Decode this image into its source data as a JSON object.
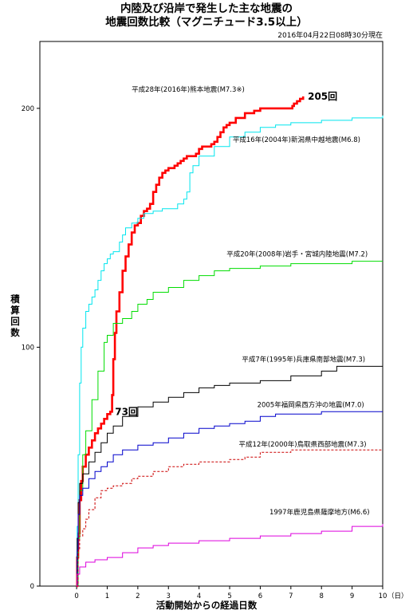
{
  "header": {
    "title_line1": "内陸及び沿岸で発生した主な地震の",
    "title_line2": "地震回数比較（マグニチュード3.5以上）",
    "as_of": "2016年04月22日08時30分現在"
  },
  "chart_data": {
    "type": "line",
    "xlabel": "活動開始からの経過日数",
    "ylabel": "積算回数",
    "x_unit": "（日）",
    "xlim": [
      -1.2,
      10
    ],
    "ylim": [
      0,
      228
    ],
    "x_ticks": [
      0,
      1,
      2,
      3,
      4,
      5,
      6,
      7,
      8,
      9,
      10
    ],
    "y_ticks": [
      0,
      100,
      200
    ],
    "grid": false,
    "annotations": [
      {
        "text": "205回",
        "x": 7.45,
        "y": 205
      },
      {
        "text": "73回",
        "x": 1.15,
        "y": 73
      }
    ],
    "series": [
      {
        "name": "平成28年(2016年)熊本地震(M7.3※)",
        "color": "#ff0000",
        "style": "solid",
        "width": 2.6,
        "label_x": 1.8,
        "label_y": 207,
        "x": [
          0,
          0.02,
          0.05,
          0.1,
          0.15,
          0.2,
          0.3,
          0.4,
          0.5,
          0.6,
          0.7,
          0.8,
          0.9,
          1.0,
          1.1,
          1.15,
          1.16,
          1.2,
          1.25,
          1.3,
          1.4,
          1.5,
          1.6,
          1.7,
          1.8,
          1.9,
          2.0,
          2.1,
          2.2,
          2.3,
          2.4,
          2.45,
          2.5,
          2.6,
          2.7,
          2.8,
          2.9,
          3.0,
          3.1,
          3.2,
          3.3,
          3.4,
          3.5,
          3.6,
          3.7,
          3.8,
          3.9,
          4.0,
          4.1,
          4.2,
          4.3,
          4.4,
          4.5,
          4.6,
          4.7,
          4.8,
          4.9,
          5.0,
          5.2,
          5.5,
          5.8,
          6.0,
          6.5,
          7.0,
          7.05,
          7.1,
          7.2,
          7.3,
          7.4
        ],
        "y": [
          0,
          12,
          22,
          36,
          44,
          50,
          55,
          58,
          61,
          64,
          66,
          68,
          70,
          72,
          73,
          73,
          80,
          95,
          106,
          115,
          123,
          132,
          138,
          143,
          148,
          151,
          152,
          155,
          157,
          158,
          160,
          160,
          165,
          168,
          171,
          173,
          174,
          175,
          175,
          176,
          177,
          178,
          179,
          180,
          180,
          180,
          181,
          183,
          184,
          184,
          184,
          185,
          186,
          188,
          190,
          192,
          193,
          194,
          196,
          198,
          199,
          200,
          200,
          200,
          201,
          202,
          203,
          204,
          205
        ]
      },
      {
        "name": "平成16年(2004年)新潟県中越地震(M6.8)",
        "color": "#00e5ee",
        "style": "solid",
        "width": 1,
        "label_x": 5.1,
        "label_y": 186,
        "x": [
          0,
          0.02,
          0.05,
          0.1,
          0.15,
          0.2,
          0.3,
          0.4,
          0.5,
          0.6,
          0.7,
          0.8,
          0.9,
          1.0,
          1.1,
          1.2,
          1.4,
          1.5,
          1.6,
          1.8,
          2.0,
          2.2,
          2.5,
          2.8,
          3.0,
          3.3,
          3.5,
          3.6,
          3.7,
          3.8,
          4.0,
          4.5,
          5.0,
          5.5,
          6.0,
          6.5,
          7.0,
          8.0,
          9.0,
          10.0
        ],
        "y": [
          0,
          25,
          55,
          85,
          100,
          108,
          115,
          118,
          121,
          124,
          128,
          132,
          135,
          137,
          139,
          140,
          144,
          147,
          150,
          152,
          154,
          156,
          157,
          158,
          158,
          160,
          162,
          165,
          173,
          176,
          180,
          184,
          188,
          190,
          192,
          193,
          194,
          195,
          196,
          197
        ]
      },
      {
        "name": "平成20年(2008年)岩手・宮城内陸地震(M7.2)",
        "color": "#00dd00",
        "style": "solid",
        "width": 1,
        "label_x": 4.9,
        "label_y": 138,
        "x": [
          0,
          0.05,
          0.1,
          0.2,
          0.3,
          0.5,
          0.7,
          0.9,
          1.0,
          1.2,
          1.5,
          1.8,
          2.0,
          2.3,
          2.5,
          3.0,
          3.5,
          4.0,
          4.5,
          5.0,
          6.0,
          7.0,
          8.0,
          9.0,
          10.0
        ],
        "y": [
          0,
          20,
          40,
          55,
          65,
          78,
          90,
          102,
          105,
          110,
          112,
          115,
          118,
          120,
          123,
          125,
          128,
          130,
          132,
          133,
          134,
          135,
          135,
          136,
          136
        ]
      },
      {
        "name": "平成7年(1995年)兵庫県南部地震(M7.3)",
        "color": "#000000",
        "style": "solid",
        "width": 1,
        "label_x": 5.4,
        "label_y": 94,
        "x": [
          0,
          0.02,
          0.05,
          0.1,
          0.2,
          0.4,
          0.6,
          0.8,
          1.0,
          1.2,
          1.5,
          2.0,
          2.5,
          3.0,
          3.5,
          4.0,
          4.5,
          5.0,
          6.0,
          7.0,
          8.0,
          8.5,
          9.0,
          10.0
        ],
        "y": [
          0,
          20,
          35,
          43,
          47,
          52,
          56,
          60,
          64,
          67,
          71,
          75,
          77,
          79,
          81,
          83,
          84,
          85,
          86,
          88,
          90,
          92,
          92,
          93
        ]
      },
      {
        "name": "2005年福岡県西方沖の地震(M7.0)",
        "color": "#0000cc",
        "style": "solid",
        "width": 1,
        "label_x": 5.9,
        "label_y": 75,
        "x": [
          0,
          0.02,
          0.05,
          0.1,
          0.2,
          0.4,
          0.6,
          0.8,
          1.0,
          1.2,
          1.5,
          2.0,
          2.5,
          3.0,
          3.5,
          4.0,
          4.5,
          5.0,
          5.5,
          6.0,
          6.5,
          7.0,
          8.0,
          10.0
        ],
        "y": [
          0,
          15,
          30,
          38,
          41,
          45,
          48,
          50,
          52,
          55,
          57,
          59,
          60,
          62,
          64,
          66,
          67,
          68,
          69,
          71,
          72,
          72,
          73,
          73
        ]
      },
      {
        "name": "平成12年(2000年)鳥取県西部地震(M7.3)",
        "color": "#cc0000",
        "style": "dashed",
        "width": 1,
        "label_x": 5.3,
        "label_y": 58.5,
        "x": [
          0,
          0.05,
          0.1,
          0.2,
          0.3,
          0.4,
          0.6,
          0.8,
          1.0,
          1.2,
          1.5,
          1.8,
          2.0,
          2.5,
          3.0,
          3.5,
          4.0,
          5.0,
          5.5,
          6.0,
          7.0,
          8.0,
          10.0
        ],
        "y": [
          0,
          15,
          21,
          24,
          28,
          32,
          37,
          40,
          41,
          42,
          43,
          45,
          46,
          48,
          50,
          51,
          52,
          53,
          54,
          56,
          57,
          57,
          57
        ]
      },
      {
        "name": "1997年鹿児島県薩摩地方(M6.6)",
        "color": "#dd00dd",
        "style": "solid",
        "width": 1,
        "label_x": 6.3,
        "label_y": 30,
        "x": [
          0,
          0.02,
          0.1,
          0.3,
          0.6,
          1.0,
          1.5,
          2.0,
          2.5,
          3.0,
          4.0,
          5.0,
          6.0,
          7.0,
          8.0,
          9.0,
          10.0
        ],
        "y": [
          0,
          5,
          8,
          10,
          11,
          12,
          14,
          16,
          17,
          18,
          19,
          20,
          21,
          22,
          23,
          25,
          26
        ]
      }
    ]
  }
}
